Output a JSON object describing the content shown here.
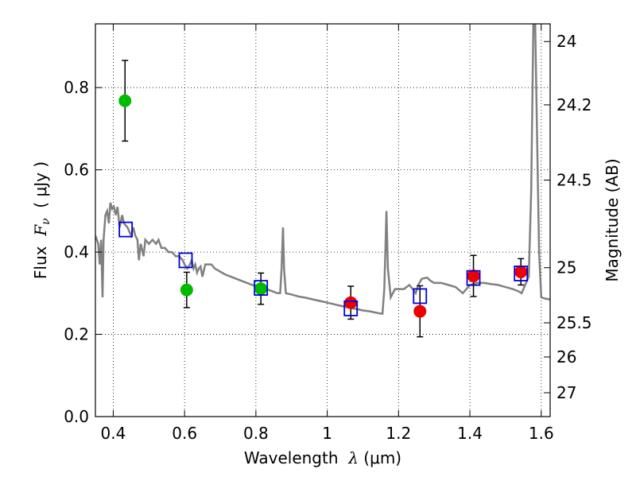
{
  "chart_data": {
    "type": "scatter",
    "xlabel": {
      "text": "Wavelength",
      "symbol": "λ",
      "unit": "(μm)"
    },
    "ylabel": {
      "text": "Flux",
      "symbol": "F",
      "subscript": "ν",
      "unit": "( μJy )"
    },
    "y2label": "Magnitude (AB)",
    "xlim": [
      0.35,
      1.625
    ],
    "ylim": [
      0.0,
      0.955
    ],
    "x_ticks": [
      {
        "value": 0.4,
        "label": "0.4"
      },
      {
        "value": 0.6,
        "label": "0.6"
      },
      {
        "value": 0.8,
        "label": "0.8"
      },
      {
        "value": 1.0,
        "label": "1"
      },
      {
        "value": 1.2,
        "label": "1.2"
      },
      {
        "value": 1.4,
        "label": "1.4"
      },
      {
        "value": 1.6,
        "label": "1.6"
      }
    ],
    "y_ticks": [
      {
        "value": 0.0,
        "label": "0.0"
      },
      {
        "value": 0.2,
        "label": "0.2"
      },
      {
        "value": 0.4,
        "label": "0.4"
      },
      {
        "value": 0.6,
        "label": "0.6"
      },
      {
        "value": 0.8,
        "label": "0.8"
      }
    ],
    "magnitude_ticks": [
      {
        "flux": 0.912,
        "label": "24"
      },
      {
        "flux": 0.758,
        "label": "24.2"
      },
      {
        "flux": 0.575,
        "label": "24.5"
      },
      {
        "flux": 0.362,
        "label": "25"
      },
      {
        "flux": 0.228,
        "label": "25.5"
      },
      {
        "flux": 0.145,
        "label": "26"
      },
      {
        "flux": 0.058,
        "label": "27"
      }
    ],
    "grid": true,
    "grid_style": "dotted",
    "model_spectrum": {
      "color": "#808080",
      "points": [
        [
          0.35,
          0.44
        ],
        [
          0.358,
          0.42
        ],
        [
          0.362,
          0.37
        ],
        [
          0.366,
          0.43
        ],
        [
          0.37,
          0.29
        ],
        [
          0.373,
          0.43
        ],
        [
          0.378,
          0.49
        ],
        [
          0.383,
          0.5
        ],
        [
          0.388,
          0.47
        ],
        [
          0.392,
          0.52
        ],
        [
          0.397,
          0.505
        ],
        [
          0.402,
          0.51
        ],
        [
          0.407,
          0.49
        ],
        [
          0.412,
          0.51
        ],
        [
          0.418,
          0.46
        ],
        [
          0.425,
          0.49
        ],
        [
          0.43,
          0.47
        ],
        [
          0.44,
          0.46
        ],
        [
          0.45,
          0.44
        ],
        [
          0.456,
          0.46
        ],
        [
          0.462,
          0.44
        ],
        [
          0.468,
          0.43
        ],
        [
          0.472,
          0.38
        ],
        [
          0.477,
          0.42
        ],
        [
          0.485,
          0.39
        ],
        [
          0.49,
          0.43
        ],
        [
          0.5,
          0.42
        ],
        [
          0.51,
          0.43
        ],
        [
          0.52,
          0.42
        ],
        [
          0.527,
          0.43
        ],
        [
          0.535,
          0.41
        ],
        [
          0.545,
          0.41
        ],
        [
          0.555,
          0.4
        ],
        [
          0.565,
          0.4
        ],
        [
          0.575,
          0.39
        ],
        [
          0.585,
          0.39
        ],
        [
          0.595,
          0.38
        ],
        [
          0.6,
          0.37
        ],
        [
          0.608,
          0.36
        ],
        [
          0.615,
          0.37
        ],
        [
          0.62,
          0.38
        ],
        [
          0.625,
          0.36
        ],
        [
          0.63,
          0.37
        ],
        [
          0.635,
          0.35
        ],
        [
          0.64,
          0.36
        ],
        [
          0.645,
          0.365
        ],
        [
          0.65,
          0.34
        ],
        [
          0.658,
          0.37
        ],
        [
          0.665,
          0.37
        ],
        [
          0.675,
          0.37
        ],
        [
          0.685,
          0.36
        ],
        [
          0.695,
          0.355
        ],
        [
          0.705,
          0.35
        ],
        [
          0.715,
          0.345
        ],
        [
          0.73,
          0.34
        ],
        [
          0.745,
          0.335
        ],
        [
          0.76,
          0.33
        ],
        [
          0.775,
          0.325
        ],
        [
          0.79,
          0.32
        ],
        [
          0.81,
          0.315
        ],
        [
          0.83,
          0.31
        ],
        [
          0.845,
          0.305
        ],
        [
          0.86,
          0.3
        ],
        [
          0.868,
          0.3
        ],
        [
          0.872,
          0.36
        ],
        [
          0.876,
          0.46
        ],
        [
          0.879,
          0.36
        ],
        [
          0.884,
          0.3
        ],
        [
          0.9,
          0.297
        ],
        [
          0.92,
          0.292
        ],
        [
          0.94,
          0.289
        ],
        [
          0.96,
          0.285
        ],
        [
          0.98,
          0.281
        ],
        [
          1.0,
          0.277
        ],
        [
          1.02,
          0.273
        ],
        [
          1.04,
          0.269
        ],
        [
          1.06,
          0.265
        ],
        [
          1.08,
          0.262
        ],
        [
          1.1,
          0.258
        ],
        [
          1.12,
          0.256
        ],
        [
          1.14,
          0.252
        ],
        [
          1.155,
          0.25
        ],
        [
          1.16,
          0.31
        ],
        [
          1.163,
          0.4
        ],
        [
          1.166,
          0.5
        ],
        [
          1.17,
          0.36
        ],
        [
          1.178,
          0.29
        ],
        [
          1.19,
          0.31
        ],
        [
          1.2,
          0.31
        ],
        [
          1.215,
          0.31
        ],
        [
          1.23,
          0.32
        ],
        [
          1.24,
          0.31
        ],
        [
          1.248,
          0.3
        ],
        [
          1.255,
          0.32
        ],
        [
          1.265,
          0.335
        ],
        [
          1.28,
          0.338
        ],
        [
          1.29,
          0.33
        ],
        [
          1.3,
          0.325
        ],
        [
          1.32,
          0.325
        ],
        [
          1.34,
          0.32
        ],
        [
          1.36,
          0.315
        ],
        [
          1.38,
          0.3
        ],
        [
          1.4,
          0.32
        ],
        [
          1.42,
          0.325
        ],
        [
          1.44,
          0.325
        ],
        [
          1.46,
          0.322
        ],
        [
          1.48,
          0.32
        ],
        [
          1.5,
          0.315
        ],
        [
          1.52,
          0.31
        ],
        [
          1.535,
          0.305
        ],
        [
          1.545,
          0.3
        ],
        [
          1.555,
          0.32
        ],
        [
          1.565,
          0.34
        ],
        [
          1.572,
          0.55
        ],
        [
          1.578,
          0.955
        ],
        [
          1.583,
          0.955
        ],
        [
          1.588,
          0.7
        ],
        [
          1.594,
          0.4
        ],
        [
          1.6,
          0.29
        ],
        [
          1.61,
          0.287
        ],
        [
          1.625,
          0.285
        ]
      ]
    },
    "series": [
      {
        "marker": "circle",
        "color": "#00bb00",
        "points": [
          {
            "x": 0.433,
            "y": 0.768,
            "err": 0.098
          },
          {
            "x": 0.606,
            "y": 0.308,
            "err": 0.043
          },
          {
            "x": 0.814,
            "y": 0.311,
            "err": 0.038
          }
        ]
      },
      {
        "marker": "circle",
        "color": "#ee0000",
        "points": [
          {
            "x": 1.066,
            "y": 0.277,
            "err": 0.04
          },
          {
            "x": 1.26,
            "y": 0.256,
            "err": 0.062
          },
          {
            "x": 1.41,
            "y": 0.342,
            "err": 0.05
          },
          {
            "x": 1.543,
            "y": 0.352,
            "err": 0.032
          }
        ]
      },
      {
        "marker": "open-square",
        "color": "#0000dd",
        "points": [
          {
            "x": 0.435,
            "y": 0.455
          },
          {
            "x": 0.603,
            "y": 0.38
          },
          {
            "x": 0.814,
            "y": 0.313
          },
          {
            "x": 1.066,
            "y": 0.263
          },
          {
            "x": 1.26,
            "y": 0.293
          },
          {
            "x": 1.41,
            "y": 0.337
          },
          {
            "x": 1.543,
            "y": 0.348
          }
        ]
      }
    ]
  }
}
